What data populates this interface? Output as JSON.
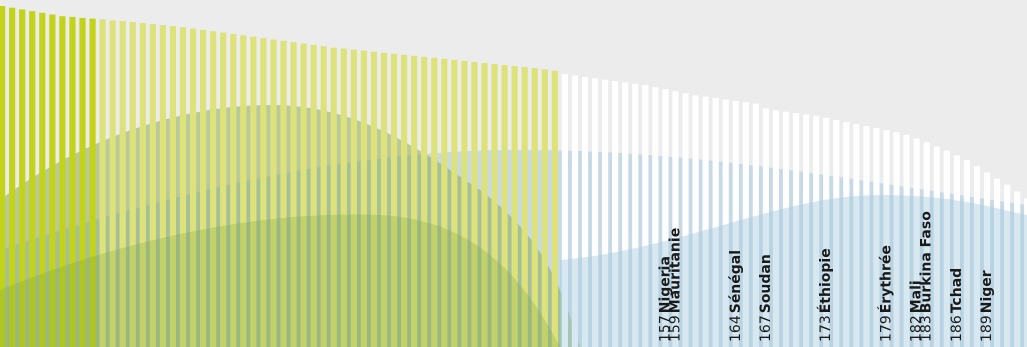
{
  "chart_data": {
    "type": "bar",
    "title": "",
    "xlabel": "",
    "ylabel": "",
    "ylim": [
      0,
      1
    ],
    "grid": false,
    "legend": "none",
    "colors": {
      "background": "#ececec",
      "top_group": "#c3d31a",
      "middle_group": "#dde37a",
      "bottom_group": "#ffffff",
      "wave_green": "#7fa03c",
      "wave_blue": "#a9cbe0",
      "label_text": "#1a1a1a"
    },
    "groups": [
      {
        "name": "",
        "count": 10,
        "color_key": "top_group"
      },
      {
        "name": "",
        "count": 46,
        "color_key": "middle_group"
      },
      {
        "name": "",
        "count": 47,
        "color_key": "bottom_group"
      }
    ],
    "values": [
      1.0,
      0.995,
      0.99,
      0.985,
      0.98,
      0.975,
      0.97,
      0.968,
      0.965,
      0.963,
      0.961,
      0.958,
      0.956,
      0.953,
      0.95,
      0.947,
      0.944,
      0.941,
      0.938,
      0.934,
      0.93,
      0.926,
      0.922,
      0.918,
      0.914,
      0.91,
      0.906,
      0.902,
      0.898,
      0.894,
      0.89,
      0.886,
      0.882,
      0.878,
      0.875,
      0.872,
      0.869,
      0.866,
      0.863,
      0.86,
      0.857,
      0.854,
      0.851,
      0.848,
      0.845,
      0.842,
      0.839,
      0.836,
      0.833,
      0.83,
      0.827,
      0.824,
      0.821,
      0.818,
      0.814,
      0.81,
      0.8,
      0.796,
      0.792,
      0.788,
      0.784,
      0.78,
      0.776,
      0.772,
      0.768,
      0.762,
      0.756,
      0.75,
      0.744,
      0.738,
      0.734,
      0.73,
      0.726,
      0.722,
      0.718,
      0.714,
      0.7,
      0.694,
      0.69,
      0.686,
      0.682,
      0.678,
      0.672,
      0.666,
      0.66,
      0.654,
      0.648,
      0.642,
      0.636,
      0.63,
      0.622,
      0.612,
      0.6,
      0.588,
      0.576,
      0.562,
      0.548,
      0.53,
      0.512,
      0.494,
      0.476,
      0.456,
      0.436
    ],
    "annotations": [
      {
        "bar": 66,
        "rank": "157",
        "country": "Nigeria"
      },
      {
        "bar": 67,
        "rank": "159",
        "country": "Mauritanie"
      },
      {
        "bar": 73,
        "rank": "164",
        "country": "Sénégal"
      },
      {
        "bar": 76,
        "rank": "167",
        "country": "Soudan"
      },
      {
        "bar": 82,
        "rank": "173",
        "country": "Éthiopie"
      },
      {
        "bar": 88,
        "rank": "179",
        "country": "Érythrée"
      },
      {
        "bar": 91,
        "rank": "182",
        "country": "Mali"
      },
      {
        "bar": 92,
        "rank": "183",
        "country": "Burkina Faso"
      },
      {
        "bar": 95,
        "rank": "186",
        "country": "Tchad"
      },
      {
        "bar": 98,
        "rank": "189",
        "country": "Niger"
      }
    ]
  }
}
